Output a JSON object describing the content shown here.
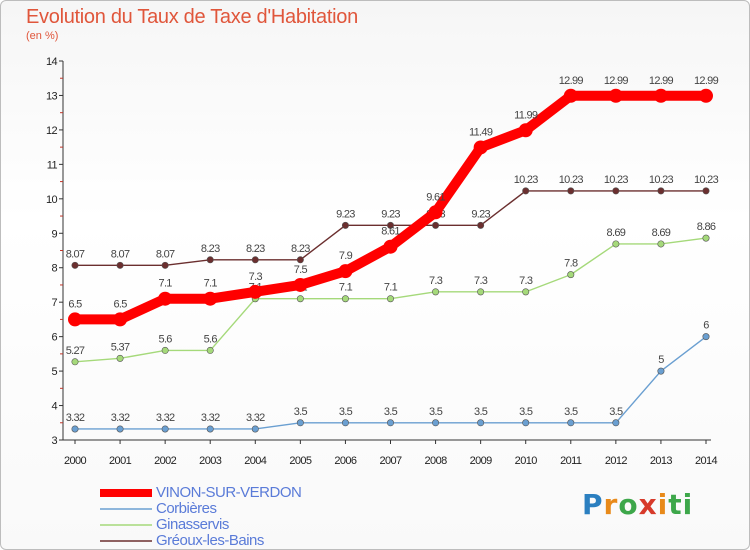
{
  "chart_data": {
    "type": "line",
    "title": "Evolution du Taux de Taxe d'Habitation",
    "subtitle": "(en %)",
    "xlabel": "",
    "ylabel": "",
    "x": [
      2000,
      2001,
      2002,
      2003,
      2004,
      2005,
      2006,
      2007,
      2008,
      2009,
      2010,
      2011,
      2012,
      2013,
      2014
    ],
    "ylim": [
      3,
      14
    ],
    "yticks": [
      3,
      4,
      5,
      6,
      7,
      8,
      9,
      10,
      11,
      12,
      13,
      14
    ],
    "grid": false,
    "legend_position": "bottom-left",
    "series": [
      {
        "name": "VINON-SUR-VERDON",
        "color": "#ff0000",
        "values": [
          6.5,
          6.5,
          7.1,
          7.1,
          7.3,
          7.5,
          7.9,
          8.61,
          9.61,
          11.49,
          11.99,
          12.99,
          12.99,
          12.99,
          12.99
        ],
        "labels": [
          "6.5",
          "6.5",
          "7.1",
          "7.1",
          "7.3",
          "7.5",
          "7.9",
          "8.61",
          "9.61",
          "11.49",
          "11.99",
          "12.99",
          "12.99",
          "12.99",
          "12.99"
        ]
      },
      {
        "name": "Corbières",
        "color": "#6a9fd1",
        "values": [
          3.32,
          3.32,
          3.32,
          3.32,
          3.32,
          3.5,
          3.5,
          3.5,
          3.5,
          3.5,
          3.5,
          3.5,
          3.5,
          5,
          6
        ],
        "labels": [
          "3.32",
          "3.32",
          "3.32",
          "3.32",
          "3.32",
          "3.5",
          "3.5",
          "3.5",
          "3.5",
          "3.5",
          "3.5",
          "3.5",
          "3.5",
          "5",
          "6"
        ]
      },
      {
        "name": "Ginasservis",
        "color": "#a5d97a",
        "values": [
          5.27,
          5.37,
          5.6,
          5.6,
          7.1,
          7.1,
          7.1,
          7.1,
          7.3,
          7.3,
          7.3,
          7.8,
          8.69,
          8.69,
          8.86
        ],
        "labels": [
          "5.27",
          "5.37",
          "5.6",
          "5.6",
          "7.1",
          "7.1",
          "7.1",
          "7.1",
          "7.3",
          "7.3",
          "7.3",
          "7.8",
          "8.69",
          "8.69",
          "8.86"
        ]
      },
      {
        "name": "Gréoux-les-Bains",
        "color": "#6b2f2f",
        "values": [
          8.07,
          8.07,
          8.07,
          8.23,
          8.23,
          8.23,
          9.23,
          9.23,
          9.23,
          9.23,
          10.23,
          10.23,
          10.23,
          10.23,
          10.23
        ],
        "labels": [
          "8.07",
          "8.07",
          "8.07",
          "8.23",
          "8.23",
          "8.23",
          "9.23",
          "9.23",
          "9.23",
          "9.23",
          "10.23",
          "10.23",
          "10.23",
          "10.23",
          "10.23"
        ]
      }
    ]
  },
  "logo": {
    "text_1": "P",
    "text_2": "r",
    "text_3": "o",
    "text_4": "x",
    "text_5": "i",
    "text_6": "ti"
  }
}
